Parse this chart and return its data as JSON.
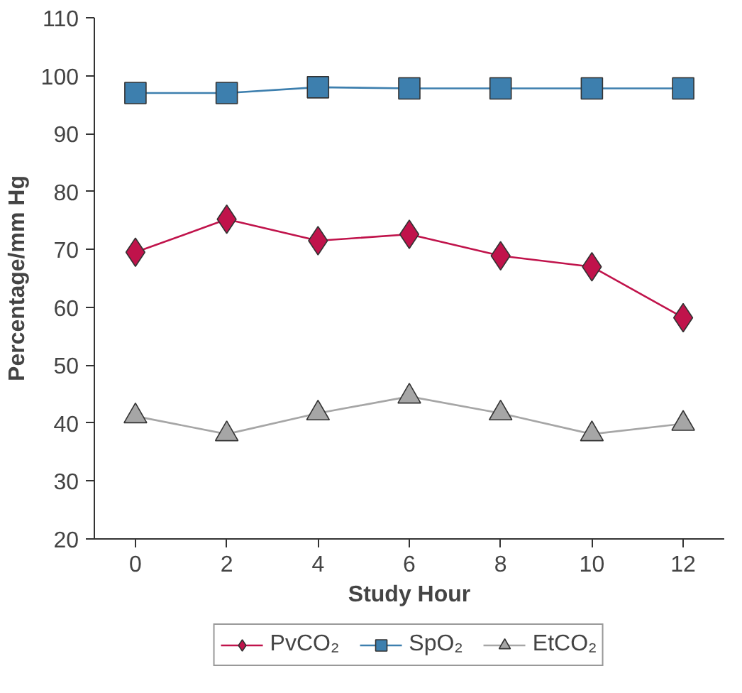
{
  "chart_data": {
    "type": "line",
    "xlabel": "Study Hour",
    "ylabel": "Percentage/mm Hg",
    "x": [
      0,
      2,
      4,
      6,
      8,
      10,
      12
    ],
    "xlim": [
      -0.9,
      12.9
    ],
    "xticks": [
      0,
      2,
      4,
      6,
      8,
      10,
      12
    ],
    "ylim": [
      20,
      110
    ],
    "yticks": [
      20,
      30,
      40,
      50,
      60,
      70,
      80,
      90,
      100,
      110
    ],
    "grid": false,
    "legend": "bottom",
    "series": [
      {
        "name": "PvCO₂",
        "color": "#c0134b",
        "marker": "diamond",
        "values": [
          69.5,
          75.2,
          71.5,
          72.6,
          68.9,
          67.0,
          58.2
        ]
      },
      {
        "name": "SpO₂",
        "color": "#3d7fae",
        "marker": "square",
        "values": [
          97.0,
          97.0,
          98.0,
          97.8,
          97.8,
          97.8,
          97.8
        ]
      },
      {
        "name": "EtCO₂",
        "color": "#a6a6a6",
        "marker": "triangle",
        "values": [
          41.2,
          38.1,
          41.7,
          44.6,
          41.7,
          38.1,
          39.9
        ]
      }
    ]
  }
}
